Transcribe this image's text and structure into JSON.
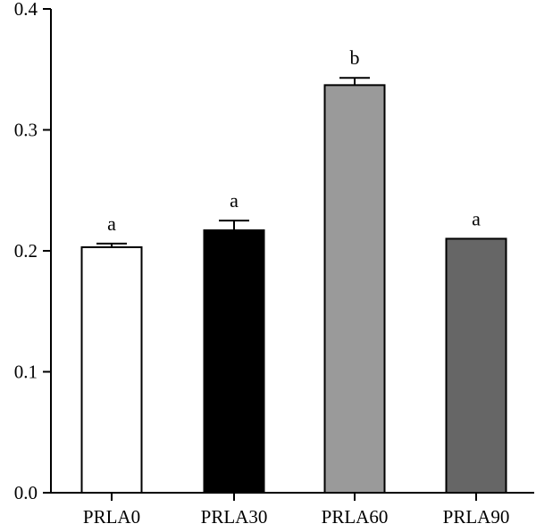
{
  "chart_data": {
    "type": "bar",
    "title": "",
    "xlabel": "",
    "ylabel": "",
    "ylim": [
      0,
      0.4
    ],
    "yticks": [
      "0.0",
      "0.1",
      "0.2",
      "0.3",
      "0.4"
    ],
    "categories": [
      "PRLA0",
      "PRLA30",
      "PRLA60",
      "PRLA90"
    ],
    "values": [
      0.203,
      0.217,
      0.337,
      0.21
    ],
    "errors": [
      0.003,
      0.008,
      0.006,
      0.0
    ],
    "significance": [
      "a",
      "a",
      "b",
      "a"
    ],
    "bar_colors": [
      "#ffffff",
      "#000000",
      "#9a9a9a",
      "#666666"
    ],
    "grid": false,
    "legend": "none"
  }
}
